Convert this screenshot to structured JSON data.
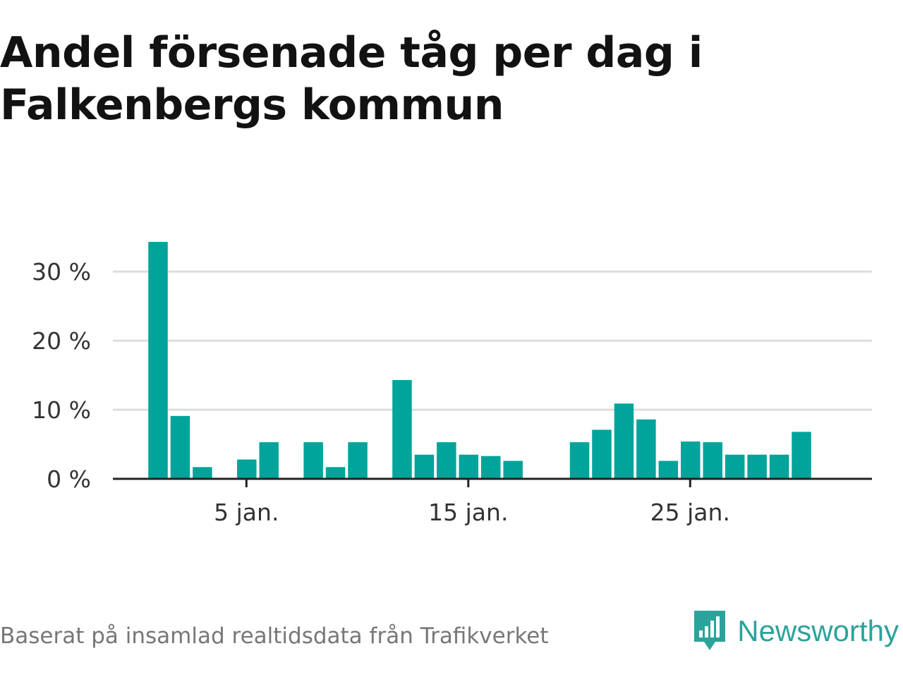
{
  "header": {
    "title": "Andel försenade tåg per dag i Falkenbergs kommun"
  },
  "footer": {
    "source": "Baserat på insamlad realtidsdata från Trafikverket",
    "brand_name": "Newsworthy",
    "brand_icon": "newsworthy-chart-bubble-icon"
  },
  "colors": {
    "bar": "#00a49a",
    "grid": "#dddddd",
    "axis": "#222222",
    "brand": "#2ba39b",
    "title": "#121212",
    "source": "#777777"
  },
  "chart_data": {
    "type": "bar",
    "title": "Andel försenade tåg per dag i Falkenbergs kommun",
    "xlabel": "",
    "ylabel": "",
    "x": [
      1,
      2,
      3,
      4,
      5,
      6,
      7,
      8,
      9,
      10,
      11,
      12,
      13,
      14,
      15,
      16,
      17,
      18,
      19,
      20,
      21,
      22,
      23,
      24,
      25,
      26,
      27,
      28,
      29,
      30,
      31
    ],
    "values": [
      34.3,
      9.1,
      1.7,
      0,
      2.8,
      5.3,
      0,
      5.3,
      1.7,
      5.3,
      0,
      14.3,
      3.5,
      5.3,
      3.5,
      3.3,
      2.6,
      0,
      0,
      5.3,
      7.1,
      10.9,
      8.6,
      2.6,
      5.4,
      5.3,
      3.5,
      3.5,
      3.5,
      6.8,
      0
    ],
    "x_ticks": [
      5,
      15,
      25
    ],
    "x_tick_labels": [
      "5 jan.",
      "15 jan.",
      "25 jan."
    ],
    "ylim": [
      0,
      34.3
    ],
    "y_ticks": [
      0,
      10,
      20,
      30
    ],
    "y_tick_labels": [
      "0 %",
      "10 %",
      "20 %",
      "30 %"
    ],
    "grid": true,
    "legend": "none"
  }
}
